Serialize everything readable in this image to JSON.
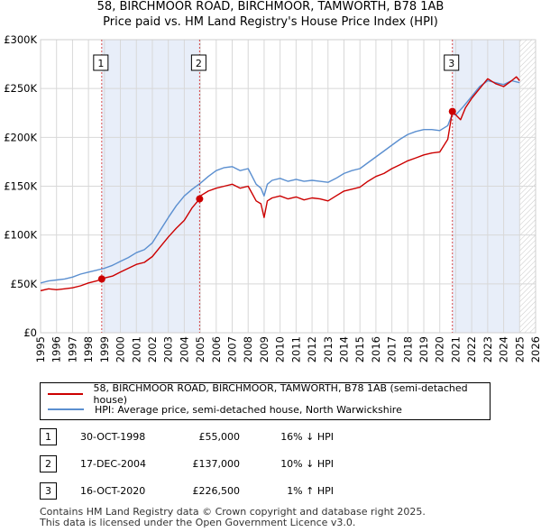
{
  "title_line1": "58, BIRCHMOOR ROAD, BIRCHMOOR, TAMWORTH, B78 1AB",
  "title_line2": "Price paid vs. HM Land Registry's House Price Index (HPI)",
  "chart_data": {
    "type": "line",
    "title": "58, BIRCHMOOR ROAD, BIRCHMOOR, TAMWORTH, B78 1AB — Price paid vs. HM Land Registry's House Price Index (HPI)",
    "xlabel": "",
    "ylabel": "",
    "xlim": [
      1995,
      2026
    ],
    "ylim": [
      0,
      300000
    ],
    "grid": true,
    "y_ticks": [
      {
        "value": 0,
        "label": "£0"
      },
      {
        "value": 50000,
        "label": "£50K"
      },
      {
        "value": 100000,
        "label": "£100K"
      },
      {
        "value": 150000,
        "label": "£150K"
      },
      {
        "value": 200000,
        "label": "£200K"
      },
      {
        "value": 250000,
        "label": "£250K"
      },
      {
        "value": 300000,
        "label": "£300K"
      }
    ],
    "x_ticks": [
      "1995",
      "1996",
      "1997",
      "1998",
      "1999",
      "2000",
      "2001",
      "2002",
      "2003",
      "2004",
      "2005",
      "2006",
      "2007",
      "2008",
      "2009",
      "2010",
      "2011",
      "2012",
      "2013",
      "2014",
      "2015",
      "2016",
      "2017",
      "2018",
      "2019",
      "2020",
      "2021",
      "2022",
      "2023",
      "2024",
      "2025",
      "2026"
    ],
    "shaded_periods": [
      [
        1998.83,
        2004.96
      ],
      [
        2020.79,
        2025.0
      ]
    ],
    "future_hatch_from": 2025.0,
    "series": [
      {
        "name": "58, BIRCHMOOR ROAD, BIRCHMOOR, TAMWORTH, B78 1AB (semi-detached house)",
        "color": "#cc0000",
        "x": [
          1995.0,
          1995.5,
          1996.0,
          1996.5,
          1997.0,
          1997.5,
          1998.0,
          1998.5,
          1998.83,
          1999.0,
          1999.5,
          2000.0,
          2000.5,
          2001.0,
          2001.5,
          2002.0,
          2002.5,
          2003.0,
          2003.5,
          2004.0,
          2004.5,
          2004.96,
          2005.0,
          2005.5,
          2006.0,
          2006.5,
          2007.0,
          2007.5,
          2008.0,
          2008.5,
          2008.8,
          2009.0,
          2009.2,
          2009.5,
          2010.0,
          2010.5,
          2011.0,
          2011.5,
          2012.0,
          2012.5,
          2013.0,
          2013.5,
          2014.0,
          2014.5,
          2015.0,
          2015.5,
          2016.0,
          2016.5,
          2017.0,
          2017.5,
          2018.0,
          2018.5,
          2019.0,
          2019.5,
          2020.0,
          2020.5,
          2020.79,
          2021.0,
          2021.3,
          2021.6,
          2022.0,
          2022.5,
          2023.0,
          2023.5,
          2024.0,
          2024.5,
          2024.8,
          2025.0
        ],
        "values": [
          43000,
          45000,
          44000,
          45000,
          46000,
          48000,
          51000,
          53000,
          55000,
          56000,
          58000,
          62000,
          66000,
          70000,
          72000,
          78000,
          88000,
          98000,
          107000,
          115000,
          128000,
          137000,
          140000,
          145000,
          148000,
          150000,
          152000,
          148000,
          150000,
          135000,
          132000,
          118000,
          135000,
          138000,
          140000,
          137000,
          139000,
          136000,
          138000,
          137000,
          135000,
          140000,
          145000,
          147000,
          149000,
          155000,
          160000,
          163000,
          168000,
          172000,
          176000,
          179000,
          182000,
          184000,
          185000,
          198000,
          226500,
          223000,
          218000,
          230000,
          240000,
          250000,
          260000,
          255000,
          252000,
          258000,
          262000,
          258000
        ]
      },
      {
        "name": "HPI: Average price, semi-detached house, North Warwickshire",
        "color": "#5b8fd0",
        "x": [
          1995.0,
          1995.5,
          1996.0,
          1996.5,
          1997.0,
          1997.5,
          1998.0,
          1998.5,
          1999.0,
          1999.5,
          2000.0,
          2000.5,
          2001.0,
          2001.5,
          2002.0,
          2002.5,
          2003.0,
          2003.5,
          2004.0,
          2004.5,
          2005.0,
          2005.5,
          2006.0,
          2006.5,
          2007.0,
          2007.5,
          2008.0,
          2008.5,
          2008.8,
          2009.0,
          2009.2,
          2009.5,
          2010.0,
          2010.5,
          2011.0,
          2011.5,
          2012.0,
          2012.5,
          2013.0,
          2013.5,
          2014.0,
          2014.5,
          2015.0,
          2015.5,
          2016.0,
          2016.5,
          2017.0,
          2017.5,
          2018.0,
          2018.5,
          2019.0,
          2019.5,
          2020.0,
          2020.5,
          2020.79,
          2021.0,
          2021.5,
          2022.0,
          2022.5,
          2023.0,
          2023.5,
          2024.0,
          2024.5,
          2025.0
        ],
        "values": [
          51000,
          53000,
          54000,
          55000,
          57000,
          60000,
          62000,
          64000,
          66000,
          69000,
          73000,
          77000,
          82000,
          85000,
          92000,
          105000,
          118000,
          130000,
          140000,
          147000,
          153000,
          160000,
          166000,
          169000,
          170000,
          166000,
          168000,
          152000,
          148000,
          140000,
          152000,
          156000,
          158000,
          155000,
          157000,
          155000,
          156000,
          155000,
          154000,
          158000,
          163000,
          166000,
          168000,
          174000,
          180000,
          186000,
          192000,
          198000,
          203000,
          206000,
          208000,
          208000,
          207000,
          212000,
          224000,
          223000,
          232000,
          242000,
          252000,
          258000,
          256000,
          254000,
          258000,
          256000
        ]
      }
    ],
    "sale_markers": [
      {
        "label": "1",
        "x": 1998.83,
        "value": 55000
      },
      {
        "label": "2",
        "x": 2004.96,
        "value": 137000
      },
      {
        "label": "3",
        "x": 2020.79,
        "value": 226500
      }
    ]
  },
  "legend": {
    "property": "58, BIRCHMOOR ROAD, BIRCHMOOR, TAMWORTH, B78 1AB (semi-detached house)",
    "hpi": "HPI: Average price, semi-detached house, North Warwickshire"
  },
  "sales": [
    {
      "num": "1",
      "date": "30-OCT-1998",
      "price": "£55,000",
      "hpi": "16% ↓ HPI"
    },
    {
      "num": "2",
      "date": "17-DEC-2004",
      "price": "£137,000",
      "hpi": "10% ↓ HPI"
    },
    {
      "num": "3",
      "date": "16-OCT-2020",
      "price": "£226,500",
      "hpi": "1% ↑ HPI"
    }
  ],
  "footer": {
    "line1": "Contains HM Land Registry data © Crown copyright and database right 2025.",
    "line2": "This data is licensed under the Open Government Licence v3.0."
  },
  "colors": {
    "property_line": "#cc0000",
    "hpi_line": "#5b8fd0",
    "shade": "#e8eef9",
    "grid": "#d8d8d8",
    "marker_line": "#cc0000"
  }
}
